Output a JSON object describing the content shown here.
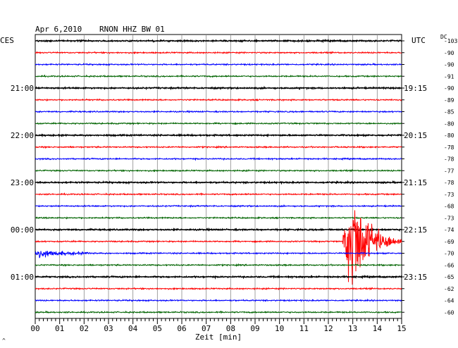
{
  "header": {
    "date": "Apr 6,2010",
    "station": "RNON HHZ BW 01",
    "left_zone": "CES",
    "right_zone": "UTC",
    "dc_label": "DC"
  },
  "chart_data": {
    "type": "line",
    "title": "Apr 6,2010   RNON HHZ BW 01",
    "xlabel": "Zeit [min]",
    "ylabel": "",
    "xlim": [
      0,
      15
    ],
    "x_ticks": [
      "00",
      "01",
      "02",
      "03",
      "04",
      "05",
      "06",
      "07",
      "08",
      "09",
      "10",
      "11",
      "12",
      "13",
      "14",
      "15"
    ],
    "grid": true,
    "trace_count": 24,
    "trace_colors": [
      "#000000",
      "#ff0000",
      "#0000ff",
      "#006400"
    ],
    "left_time_labels": [
      {
        "trace": 4,
        "text": "21:00"
      },
      {
        "trace": 8,
        "text": "22:00"
      },
      {
        "trace": 12,
        "text": "23:00"
      },
      {
        "trace": 16,
        "text": "00:00"
      },
      {
        "trace": 20,
        "text": "01:00"
      }
    ],
    "right_time_labels": [
      {
        "trace": 4,
        "text": "19:15"
      },
      {
        "trace": 8,
        "text": "20:15"
      },
      {
        "trace": 12,
        "text": "21:15"
      },
      {
        "trace": 16,
        "text": "22:15"
      },
      {
        "trace": 20,
        "text": "23:15"
      }
    ],
    "dc_offsets": [
      "-103",
      "-90",
      "-90",
      "-91",
      "-90",
      "-89",
      "-85",
      "-80",
      "-80",
      "-78",
      "-78",
      "-77",
      "-78",
      "-73",
      "-68",
      "-73",
      "-74",
      "-69",
      "-70",
      "-66",
      "-65",
      "-62",
      "-64",
      "-60"
    ],
    "events": [
      {
        "trace": 17,
        "start_min": 12.55,
        "end_min": 15.0,
        "peak_min": 13.0,
        "description": "earthquake signal"
      },
      {
        "trace": 18,
        "start_min": 0.0,
        "end_min": 2.3,
        "description": "coda continuation"
      }
    ]
  },
  "corner_mark": "^"
}
